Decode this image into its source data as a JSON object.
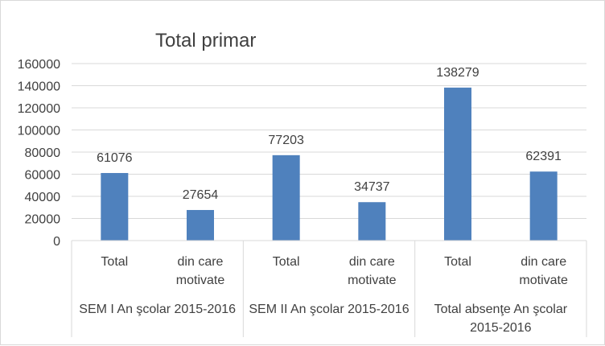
{
  "chart_data": {
    "type": "bar",
    "title": "Total primar",
    "ylim": [
      0,
      160000
    ],
    "yticks": [
      "0",
      "20000",
      "40000",
      "60000",
      "80000",
      "100000",
      "120000",
      "140000",
      "160000"
    ],
    "ytick_values": [
      0,
      20000,
      40000,
      60000,
      80000,
      100000,
      120000,
      140000,
      160000
    ],
    "grid": true,
    "legend": "none",
    "bar_color": "#4f81bd",
    "groups": [
      {
        "label_lines": [
          "SEM I An şcolar 2015-2016"
        ]
      },
      {
        "label_lines": [
          "SEM II An şcolar 2015-2016"
        ]
      },
      {
        "label_lines": [
          "Total absenţe An şcolar",
          "2015-2016"
        ]
      }
    ],
    "categories": [
      {
        "group": 0,
        "label_lines": [
          "Total"
        ]
      },
      {
        "group": 0,
        "label_lines": [
          "din care",
          "motivate"
        ]
      },
      {
        "group": 1,
        "label_lines": [
          "Total"
        ]
      },
      {
        "group": 1,
        "label_lines": [
          "din care",
          "motivate"
        ]
      },
      {
        "group": 2,
        "label_lines": [
          "Total"
        ]
      },
      {
        "group": 2,
        "label_lines": [
          "din care",
          "motivate"
        ]
      }
    ],
    "values": [
      61076,
      27654,
      77203,
      34737,
      138279,
      62391
    ],
    "data_labels": [
      "61076",
      "27654",
      "77203",
      "34737",
      "138279",
      "62391"
    ]
  }
}
